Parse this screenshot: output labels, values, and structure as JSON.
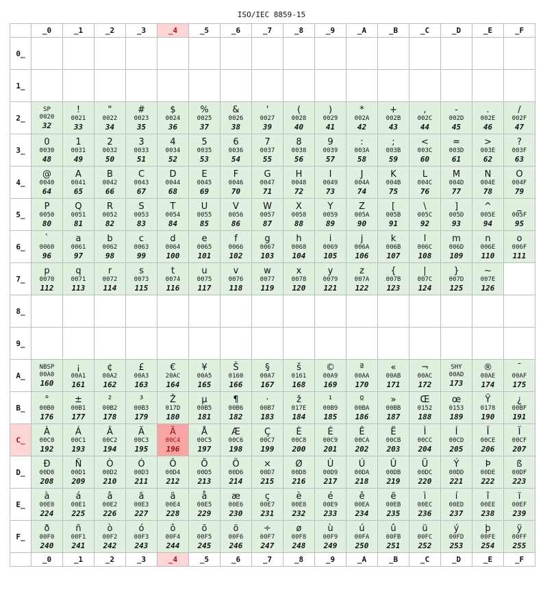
{
  "title": "ISO/IEC 8859-15",
  "highlight": {
    "row": "C_",
    "col": "_4"
  },
  "colors": {
    "assigned": "#dff0df",
    "highlight_cell": "#f7a4a4",
    "highlight_header": "#fdd5d5",
    "highlight_text": "#a01010"
  },
  "columns": [
    "_0",
    "_1",
    "_2",
    "_3",
    "_4",
    "_5",
    "_6",
    "_7",
    "_8",
    "_9",
    "_A",
    "_B",
    "_C",
    "_D",
    "_E",
    "_F"
  ],
  "rows": [
    {
      "label": "0_",
      "cells": [
        null,
        null,
        null,
        null,
        null,
        null,
        null,
        null,
        null,
        null,
        null,
        null,
        null,
        null,
        null,
        null
      ]
    },
    {
      "label": "1_",
      "cells": [
        null,
        null,
        null,
        null,
        null,
        null,
        null,
        null,
        null,
        null,
        null,
        null,
        null,
        null,
        null,
        null
      ]
    },
    {
      "label": "2_",
      "cells": [
        [
          "SP",
          "0020",
          "32"
        ],
        [
          "!",
          "0021",
          "33"
        ],
        [
          "\"",
          "0022",
          "34"
        ],
        [
          "#",
          "0023",
          "35"
        ],
        [
          "$",
          "0024",
          "36"
        ],
        [
          "%",
          "0025",
          "37"
        ],
        [
          "&",
          "0026",
          "38"
        ],
        [
          "'",
          "0027",
          "39"
        ],
        [
          "(",
          "0028",
          "40"
        ],
        [
          ")",
          "0029",
          "41"
        ],
        [
          "*",
          "002A",
          "42"
        ],
        [
          "+",
          "002B",
          "43"
        ],
        [
          ",",
          "002C",
          "44"
        ],
        [
          "-",
          "002D",
          "45"
        ],
        [
          ".",
          "002E",
          "46"
        ],
        [
          "/",
          "002F",
          "47"
        ]
      ]
    },
    {
      "label": "3_",
      "cells": [
        [
          "0",
          "0030",
          "48"
        ],
        [
          "1",
          "0031",
          "49"
        ],
        [
          "2",
          "0032",
          "50"
        ],
        [
          "3",
          "0033",
          "51"
        ],
        [
          "4",
          "0034",
          "52"
        ],
        [
          "5",
          "0035",
          "53"
        ],
        [
          "6",
          "0036",
          "54"
        ],
        [
          "7",
          "0037",
          "55"
        ],
        [
          "8",
          "0038",
          "56"
        ],
        [
          "9",
          "0039",
          "57"
        ],
        [
          ":",
          "003A",
          "58"
        ],
        [
          ";",
          "003B",
          "59"
        ],
        [
          "<",
          "003C",
          "60"
        ],
        [
          "=",
          "003D",
          "61"
        ],
        [
          ">",
          "003E",
          "62"
        ],
        [
          "?",
          "003F",
          "63"
        ]
      ]
    },
    {
      "label": "4_",
      "cells": [
        [
          "@",
          "0040",
          "64"
        ],
        [
          "A",
          "0041",
          "65"
        ],
        [
          "B",
          "0042",
          "66"
        ],
        [
          "C",
          "0043",
          "67"
        ],
        [
          "D",
          "0044",
          "68"
        ],
        [
          "E",
          "0045",
          "69"
        ],
        [
          "F",
          "0046",
          "70"
        ],
        [
          "G",
          "0047",
          "71"
        ],
        [
          "H",
          "0048",
          "72"
        ],
        [
          "I",
          "0049",
          "73"
        ],
        [
          "J",
          "004A",
          "74"
        ],
        [
          "K",
          "004B",
          "75"
        ],
        [
          "L",
          "004C",
          "76"
        ],
        [
          "M",
          "004D",
          "77"
        ],
        [
          "N",
          "004E",
          "78"
        ],
        [
          "O",
          "004F",
          "79"
        ]
      ]
    },
    {
      "label": "5_",
      "cells": [
        [
          "P",
          "0050",
          "80"
        ],
        [
          "Q",
          "0051",
          "81"
        ],
        [
          "R",
          "0052",
          "82"
        ],
        [
          "S",
          "0053",
          "83"
        ],
        [
          "T",
          "0054",
          "84"
        ],
        [
          "U",
          "0055",
          "85"
        ],
        [
          "V",
          "0056",
          "86"
        ],
        [
          "W",
          "0057",
          "87"
        ],
        [
          "X",
          "0058",
          "88"
        ],
        [
          "Y",
          "0059",
          "89"
        ],
        [
          "Z",
          "005A",
          "90"
        ],
        [
          "[",
          "005B",
          "91"
        ],
        [
          "\\",
          "005C",
          "92"
        ],
        [
          "]",
          "005D",
          "93"
        ],
        [
          "^",
          "005E",
          "94"
        ],
        [
          "_",
          "005F",
          "95"
        ]
      ]
    },
    {
      "label": "6_",
      "cells": [
        [
          "`",
          "0060",
          "96"
        ],
        [
          "a",
          "0061",
          "97"
        ],
        [
          "b",
          "0062",
          "98"
        ],
        [
          "c",
          "0063",
          "99"
        ],
        [
          "d",
          "0064",
          "100"
        ],
        [
          "e",
          "0065",
          "101"
        ],
        [
          "f",
          "0066",
          "102"
        ],
        [
          "g",
          "0067",
          "103"
        ],
        [
          "h",
          "0068",
          "104"
        ],
        [
          "i",
          "0069",
          "105"
        ],
        [
          "j",
          "006A",
          "106"
        ],
        [
          "k",
          "006B",
          "107"
        ],
        [
          "l",
          "006C",
          "108"
        ],
        [
          "m",
          "006D",
          "109"
        ],
        [
          "n",
          "006E",
          "110"
        ],
        [
          "o",
          "006F",
          "111"
        ]
      ]
    },
    {
      "label": "7_",
      "cells": [
        [
          "p",
          "0070",
          "112"
        ],
        [
          "q",
          "0071",
          "113"
        ],
        [
          "r",
          "0072",
          "114"
        ],
        [
          "s",
          "0073",
          "115"
        ],
        [
          "t",
          "0074",
          "116"
        ],
        [
          "u",
          "0075",
          "117"
        ],
        [
          "v",
          "0076",
          "118"
        ],
        [
          "w",
          "0077",
          "119"
        ],
        [
          "x",
          "0078",
          "120"
        ],
        [
          "y",
          "0079",
          "121"
        ],
        [
          "z",
          "007A",
          "122"
        ],
        [
          "{",
          "007B",
          "123"
        ],
        [
          "|",
          "007C",
          "124"
        ],
        [
          "}",
          "007D",
          "125"
        ],
        [
          "~",
          "007E",
          "126"
        ],
        null
      ]
    },
    {
      "label": "8_",
      "cells": [
        null,
        null,
        null,
        null,
        null,
        null,
        null,
        null,
        null,
        null,
        null,
        null,
        null,
        null,
        null,
        null
      ]
    },
    {
      "label": "9_",
      "cells": [
        null,
        null,
        null,
        null,
        null,
        null,
        null,
        null,
        null,
        null,
        null,
        null,
        null,
        null,
        null,
        null
      ]
    },
    {
      "label": "A_",
      "cells": [
        [
          "NBSP",
          "00A0",
          "160"
        ],
        [
          "¡",
          "00A1",
          "161"
        ],
        [
          "¢",
          "00A2",
          "162"
        ],
        [
          "£",
          "00A3",
          "163"
        ],
        [
          "€",
          "20AC",
          "164"
        ],
        [
          "¥",
          "00A5",
          "165"
        ],
        [
          "Š",
          "0160",
          "166"
        ],
        [
          "§",
          "00A7",
          "167"
        ],
        [
          "š",
          "0161",
          "168"
        ],
        [
          "©",
          "00A9",
          "169"
        ],
        [
          "ª",
          "00AA",
          "170"
        ],
        [
          "«",
          "00AB",
          "171"
        ],
        [
          "¬",
          "00AC",
          "172"
        ],
        [
          "SHY",
          "00AD",
          "173"
        ],
        [
          "®",
          "00AE",
          "174"
        ],
        [
          "¯",
          "00AF",
          "175"
        ]
      ]
    },
    {
      "label": "B_",
      "cells": [
        [
          "°",
          "00B0",
          "176"
        ],
        [
          "±",
          "00B1",
          "177"
        ],
        [
          "²",
          "00B2",
          "178"
        ],
        [
          "³",
          "00B3",
          "179"
        ],
        [
          "Ž",
          "017D",
          "180"
        ],
        [
          "µ",
          "00B5",
          "181"
        ],
        [
          "¶",
          "00B6",
          "182"
        ],
        [
          "·",
          "00B7",
          "183"
        ],
        [
          "ž",
          "017E",
          "184"
        ],
        [
          "¹",
          "00B9",
          "185"
        ],
        [
          "º",
          "00BA",
          "186"
        ],
        [
          "»",
          "00BB",
          "187"
        ],
        [
          "Œ",
          "0152",
          "188"
        ],
        [
          "œ",
          "0153",
          "189"
        ],
        [
          "Ÿ",
          "0178",
          "190"
        ],
        [
          "¿",
          "00BF",
          "191"
        ]
      ]
    },
    {
      "label": "C_",
      "cells": [
        [
          "À",
          "00C0",
          "192"
        ],
        [
          "Á",
          "00C1",
          "193"
        ],
        [
          "Â",
          "00C2",
          "194"
        ],
        [
          "Ã",
          "00C3",
          "195"
        ],
        [
          "Ä",
          "00C4",
          "196"
        ],
        [
          "Å",
          "00C5",
          "197"
        ],
        [
          "Æ",
          "00C6",
          "198"
        ],
        [
          "Ç",
          "00C7",
          "199"
        ],
        [
          "È",
          "00C8",
          "200"
        ],
        [
          "É",
          "00C9",
          "201"
        ],
        [
          "Ê",
          "00CA",
          "202"
        ],
        [
          "Ë",
          "00CB",
          "203"
        ],
        [
          "Ì",
          "00CC",
          "204"
        ],
        [
          "Í",
          "00CD",
          "205"
        ],
        [
          "Î",
          "00CE",
          "206"
        ],
        [
          "Ï",
          "00CF",
          "207"
        ]
      ]
    },
    {
      "label": "D_",
      "cells": [
        [
          "Ð",
          "00D0",
          "208"
        ],
        [
          "Ñ",
          "00D1",
          "209"
        ],
        [
          "Ò",
          "00D2",
          "210"
        ],
        [
          "Ó",
          "00D3",
          "211"
        ],
        [
          "Ô",
          "00D4",
          "212"
        ],
        [
          "Õ",
          "00D5",
          "213"
        ],
        [
          "Ö",
          "00D6",
          "214"
        ],
        [
          "×",
          "00D7",
          "215"
        ],
        [
          "Ø",
          "00D8",
          "216"
        ],
        [
          "Ù",
          "00D9",
          "217"
        ],
        [
          "Ú",
          "00DA",
          "218"
        ],
        [
          "Û",
          "00DB",
          "219"
        ],
        [
          "Ü",
          "00DC",
          "220"
        ],
        [
          "Ý",
          "00DD",
          "221"
        ],
        [
          "Þ",
          "00DE",
          "222"
        ],
        [
          "ß",
          "00DF",
          "223"
        ]
      ]
    },
    {
      "label": "E_",
      "cells": [
        [
          "à",
          "00E0",
          "224"
        ],
        [
          "á",
          "00E1",
          "225"
        ],
        [
          "â",
          "00E2",
          "226"
        ],
        [
          "ã",
          "00E3",
          "227"
        ],
        [
          "ä",
          "00E4",
          "228"
        ],
        [
          "å",
          "00E5",
          "229"
        ],
        [
          "æ",
          "00E6",
          "230"
        ],
        [
          "ç",
          "00E7",
          "231"
        ],
        [
          "è",
          "00E8",
          "232"
        ],
        [
          "é",
          "00E9",
          "233"
        ],
        [
          "ê",
          "00EA",
          "234"
        ],
        [
          "ë",
          "00EB",
          "235"
        ],
        [
          "ì",
          "00EC",
          "236"
        ],
        [
          "í",
          "00ED",
          "237"
        ],
        [
          "î",
          "00EE",
          "238"
        ],
        [
          "ï",
          "00EF",
          "239"
        ]
      ]
    },
    {
      "label": "F_",
      "cells": [
        [
          "ð",
          "00F0",
          "240"
        ],
        [
          "ñ",
          "00F1",
          "241"
        ],
        [
          "ò",
          "00F2",
          "242"
        ],
        [
          "ó",
          "00F3",
          "243"
        ],
        [
          "ô",
          "00F4",
          "244"
        ],
        [
          "õ",
          "00F5",
          "245"
        ],
        [
          "ö",
          "00F6",
          "246"
        ],
        [
          "÷",
          "00F7",
          "247"
        ],
        [
          "ø",
          "00F8",
          "248"
        ],
        [
          "ù",
          "00F9",
          "249"
        ],
        [
          "ú",
          "00FA",
          "250"
        ],
        [
          "û",
          "00FB",
          "251"
        ],
        [
          "ü",
          "00FC",
          "252"
        ],
        [
          "ý",
          "00FD",
          "253"
        ],
        [
          "þ",
          "00FE",
          "254"
        ],
        [
          "ÿ",
          "00FF",
          "255"
        ]
      ]
    }
  ]
}
